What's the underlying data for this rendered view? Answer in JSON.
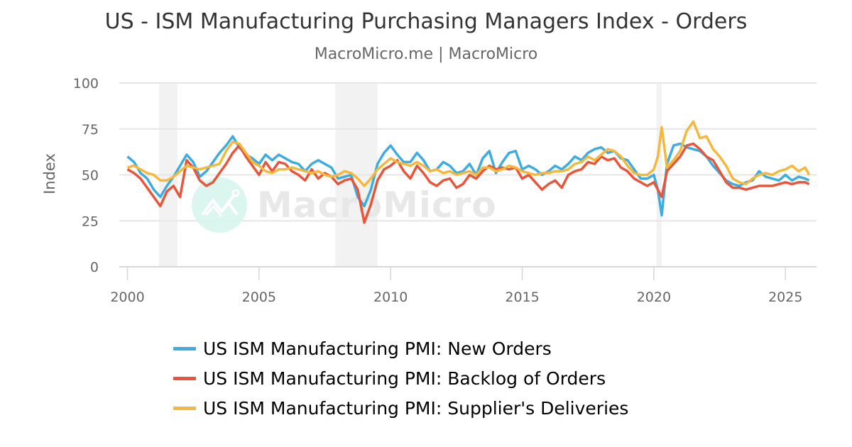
{
  "header": {
    "title": "US - ISM Manufacturing Purchasing Managers Index - Orders",
    "subtitle": "MacroMicro.me | MacroMicro"
  },
  "watermark": {
    "text": "MacroMicro",
    "logo": "macromicro-logo-icon"
  },
  "chart_data": {
    "type": "line",
    "title": "US - ISM Manufacturing Purchasing Managers Index - Orders",
    "subtitle": "MacroMicro.me | MacroMicro",
    "xlabel": "",
    "ylabel": "Index",
    "ylim": [
      0,
      100
    ],
    "yticks": [
      0,
      25,
      50,
      75,
      100
    ],
    "xlim": [
      2000.0,
      2026.2
    ],
    "xticks": [
      2000,
      2005,
      2010,
      2015,
      2020,
      2025
    ],
    "grid": true,
    "legend_position": "bottom",
    "recession_bands": [
      [
        2001.2,
        2001.9
      ],
      [
        2007.9,
        2009.5
      ],
      [
        2020.1,
        2020.3
      ]
    ],
    "x": [
      2000.0,
      2000.25,
      2000.5,
      2000.75,
      2001.0,
      2001.25,
      2001.5,
      2001.75,
      2002.0,
      2002.25,
      2002.5,
      2002.75,
      2003.0,
      2003.25,
      2003.5,
      2003.75,
      2004.0,
      2004.25,
      2004.5,
      2004.75,
      2005.0,
      2005.25,
      2005.5,
      2005.75,
      2006.0,
      2006.25,
      2006.5,
      2006.75,
      2007.0,
      2007.25,
      2007.5,
      2007.75,
      2008.0,
      2008.25,
      2008.5,
      2008.75,
      2009.0,
      2009.25,
      2009.5,
      2009.75,
      2010.0,
      2010.25,
      2010.5,
      2010.75,
      2011.0,
      2011.25,
      2011.5,
      2011.75,
      2012.0,
      2012.25,
      2012.5,
      2012.75,
      2013.0,
      2013.25,
      2013.5,
      2013.75,
      2014.0,
      2014.25,
      2014.5,
      2014.75,
      2015.0,
      2015.25,
      2015.5,
      2015.75,
      2016.0,
      2016.25,
      2016.5,
      2016.75,
      2017.0,
      2017.25,
      2017.5,
      2017.75,
      2018.0,
      2018.25,
      2018.5,
      2018.75,
      2019.0,
      2019.25,
      2019.5,
      2019.75,
      2020.0,
      2020.15,
      2020.3,
      2020.5,
      2020.75,
      2021.0,
      2021.25,
      2021.5,
      2021.75,
      2022.0,
      2022.25,
      2022.5,
      2022.75,
      2023.0,
      2023.25,
      2023.5,
      2023.75,
      2024.0,
      2024.25,
      2024.5,
      2024.75,
      2025.0,
      2025.25,
      2025.5,
      2025.75,
      2025.9
    ],
    "series": [
      {
        "name": "US ISM Manufacturing PMI: New Orders",
        "color": "#3dade0",
        "values": [
          60,
          57,
          51,
          48,
          42,
          38,
          44,
          49,
          55,
          61,
          57,
          49,
          52,
          57,
          62,
          66,
          71,
          65,
          61,
          59,
          56,
          61,
          58,
          61,
          59,
          57,
          56,
          52,
          56,
          58,
          56,
          54,
          48,
          49,
          50,
          38,
          33,
          42,
          56,
          62,
          66,
          61,
          57,
          57,
          62,
          58,
          52,
          53,
          57,
          55,
          51,
          52,
          56,
          50,
          59,
          63,
          51,
          57,
          62,
          63,
          53,
          55,
          53,
          50,
          52,
          55,
          53,
          56,
          60,
          58,
          62,
          64,
          65,
          62,
          63,
          59,
          58,
          53,
          48,
          48,
          50,
          42,
          28,
          56,
          66,
          67,
          65,
          64,
          63,
          60,
          55,
          51,
          47,
          45,
          44,
          46,
          47,
          52,
          49,
          48,
          47,
          50,
          47,
          49,
          48,
          47
        ]
      },
      {
        "name": "US ISM Manufacturing PMI: Backlog of Orders",
        "color": "#e8553a",
        "values": [
          53,
          51,
          48,
          43,
          38,
          33,
          41,
          44,
          38,
          58,
          54,
          47,
          44,
          46,
          51,
          56,
          62,
          66,
          60,
          55,
          50,
          57,
          52,
          57,
          56,
          52,
          50,
          47,
          53,
          48,
          51,
          49,
          45,
          47,
          48,
          42,
          24,
          34,
          47,
          53,
          55,
          58,
          52,
          48,
          55,
          51,
          46,
          44,
          47,
          48,
          43,
          45,
          50,
          48,
          52,
          55,
          53,
          54,
          53,
          54,
          48,
          50,
          46,
          42,
          45,
          47,
          43,
          50,
          52,
          53,
          57,
          56,
          60,
          58,
          59,
          54,
          52,
          48,
          46,
          44,
          46,
          42,
          38,
          52,
          56,
          60,
          66,
          67,
          64,
          60,
          58,
          52,
          46,
          43,
          43,
          42,
          43,
          44,
          44,
          44,
          45,
          46,
          45,
          46,
          46,
          45
        ]
      },
      {
        "name": "US ISM Manufacturing PMI: Supplier's Deliveries",
        "color": "#f5b83d",
        "values": [
          54,
          55,
          53,
          51,
          50,
          47,
          47,
          49,
          52,
          55,
          54,
          53,
          54,
          55,
          56,
          63,
          68,
          67,
          62,
          57,
          55,
          52,
          51,
          53,
          53,
          54,
          53,
          52,
          51,
          52,
          50,
          49,
          50,
          52,
          51,
          48,
          44,
          48,
          53,
          56,
          59,
          57,
          56,
          55,
          57,
          55,
          52,
          53,
          51,
          52,
          50,
          51,
          52,
          50,
          54,
          54,
          52,
          53,
          55,
          54,
          52,
          51,
          50,
          51,
          51,
          52,
          52,
          53,
          56,
          57,
          60,
          58,
          61,
          64,
          63,
          60,
          55,
          51,
          50,
          50,
          53,
          60,
          76,
          54,
          58,
          63,
          74,
          79,
          70,
          71,
          64,
          60,
          55,
          48,
          46,
          45,
          48,
          50,
          51,
          50,
          52,
          53,
          55,
          52,
          54,
          50
        ]
      }
    ]
  },
  "axes": {
    "ylabel": "Index",
    "yticks": [
      "0",
      "25",
      "50",
      "75",
      "100"
    ],
    "xticks": [
      "2000",
      "2005",
      "2010",
      "2015",
      "2020",
      "2025"
    ]
  },
  "legend": {
    "items": [
      {
        "label": "US ISM Manufacturing PMI: New Orders",
        "color": "#3dade0"
      },
      {
        "label": "US ISM Manufacturing PMI: Backlog of Orders",
        "color": "#e8553a"
      },
      {
        "label": "US ISM Manufacturing PMI: Supplier's Deliveries",
        "color": "#f5b83d"
      }
    ]
  }
}
